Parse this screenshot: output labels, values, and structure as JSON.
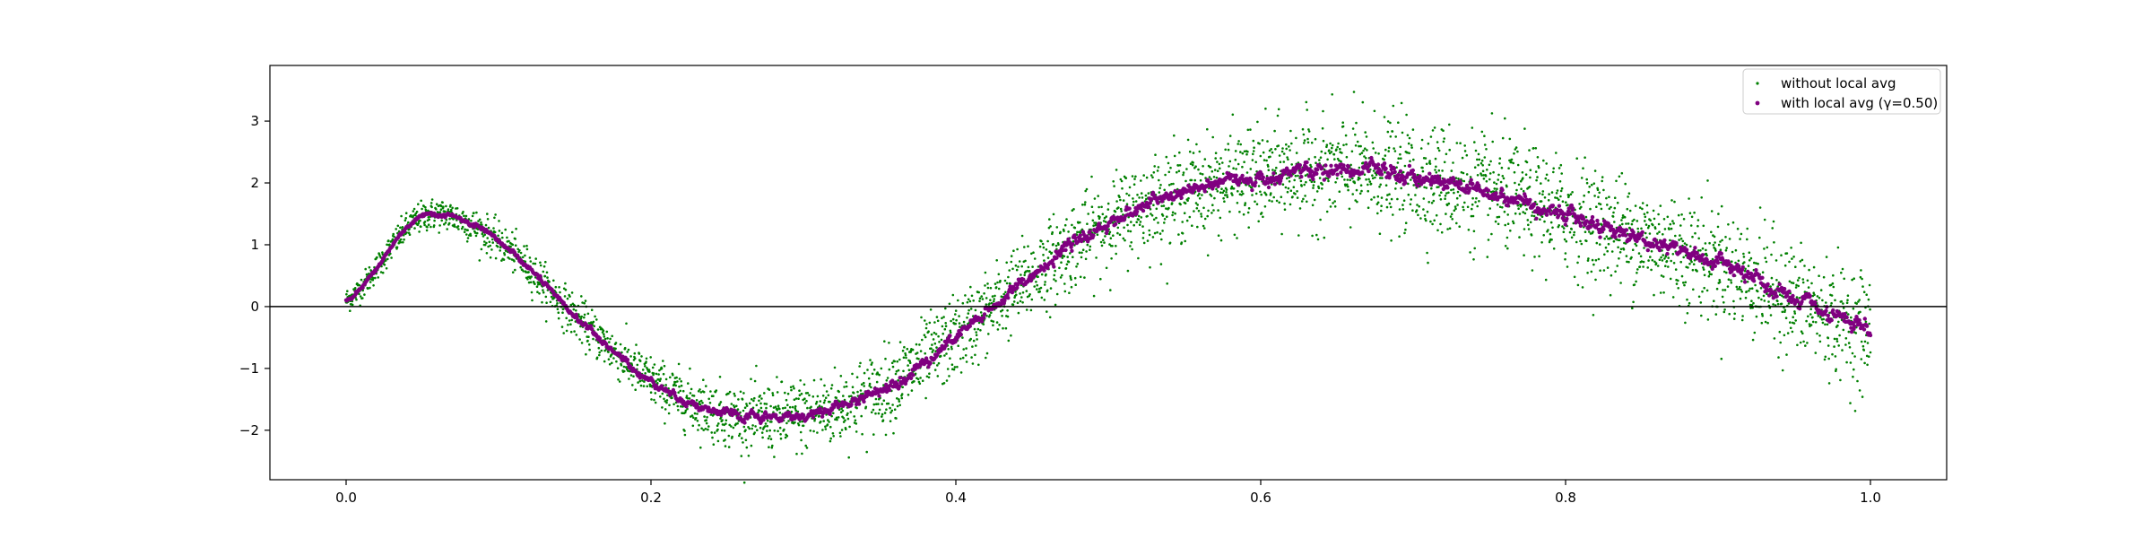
{
  "chart_data": {
    "type": "scatter",
    "xlim": [
      -0.05,
      1.05
    ],
    "ylim": [
      -2.8,
      3.9
    ],
    "x_ticks": [
      0.0,
      0.2,
      0.4,
      0.6,
      0.8,
      1.0
    ],
    "x_tick_labels": [
      "0.0",
      "0.2",
      "0.4",
      "0.6",
      "0.8",
      "1.0"
    ],
    "y_ticks": [
      -2,
      -1,
      0,
      1,
      2,
      3
    ],
    "y_tick_labels": [
      "−2",
      "−1",
      "0",
      "1",
      "2",
      "3"
    ],
    "horizontal_reference_line": 0,
    "grid": false,
    "legend": {
      "placement": "top-right"
    },
    "series": [
      {
        "name": "without local avg",
        "color": "#008000",
        "marker": "small-dot",
        "x": [
          0.0,
          0.05,
          0.1,
          0.15,
          0.2,
          0.25,
          0.3,
          0.35,
          0.4,
          0.45,
          0.5,
          0.55,
          0.6,
          0.65,
          0.7,
          0.75,
          0.8,
          0.85,
          0.9,
          0.95,
          1.0
        ],
        "y": [
          0.1,
          1.45,
          1.05,
          -0.15,
          -1.2,
          -1.75,
          -1.75,
          -1.35,
          -0.5,
          0.5,
          1.35,
          1.85,
          2.1,
          2.2,
          2.1,
          1.85,
          1.5,
          1.1,
          0.7,
          0.1,
          -0.4
        ],
        "noise_sd_at_x": [
          [
            0.0,
            0.1
          ],
          [
            0.2,
            0.2
          ],
          [
            0.3,
            0.3
          ],
          [
            0.5,
            0.35
          ],
          [
            0.7,
            0.45
          ],
          [
            1.0,
            0.45
          ]
        ]
      },
      {
        "name": "with local avg (γ=0.50)",
        "color": "#800080",
        "marker": "dot",
        "x": [
          0.0,
          0.05,
          0.1,
          0.15,
          0.2,
          0.25,
          0.3,
          0.35,
          0.4,
          0.45,
          0.5,
          0.55,
          0.6,
          0.65,
          0.7,
          0.75,
          0.8,
          0.85,
          0.9,
          0.95,
          1.0
        ],
        "y": [
          0.1,
          1.45,
          1.05,
          -0.15,
          -1.2,
          -1.75,
          -1.75,
          -1.35,
          -0.5,
          0.5,
          1.35,
          1.85,
          2.1,
          2.2,
          2.1,
          1.85,
          1.5,
          1.1,
          0.7,
          0.1,
          -0.4
        ]
      }
    ]
  }
}
